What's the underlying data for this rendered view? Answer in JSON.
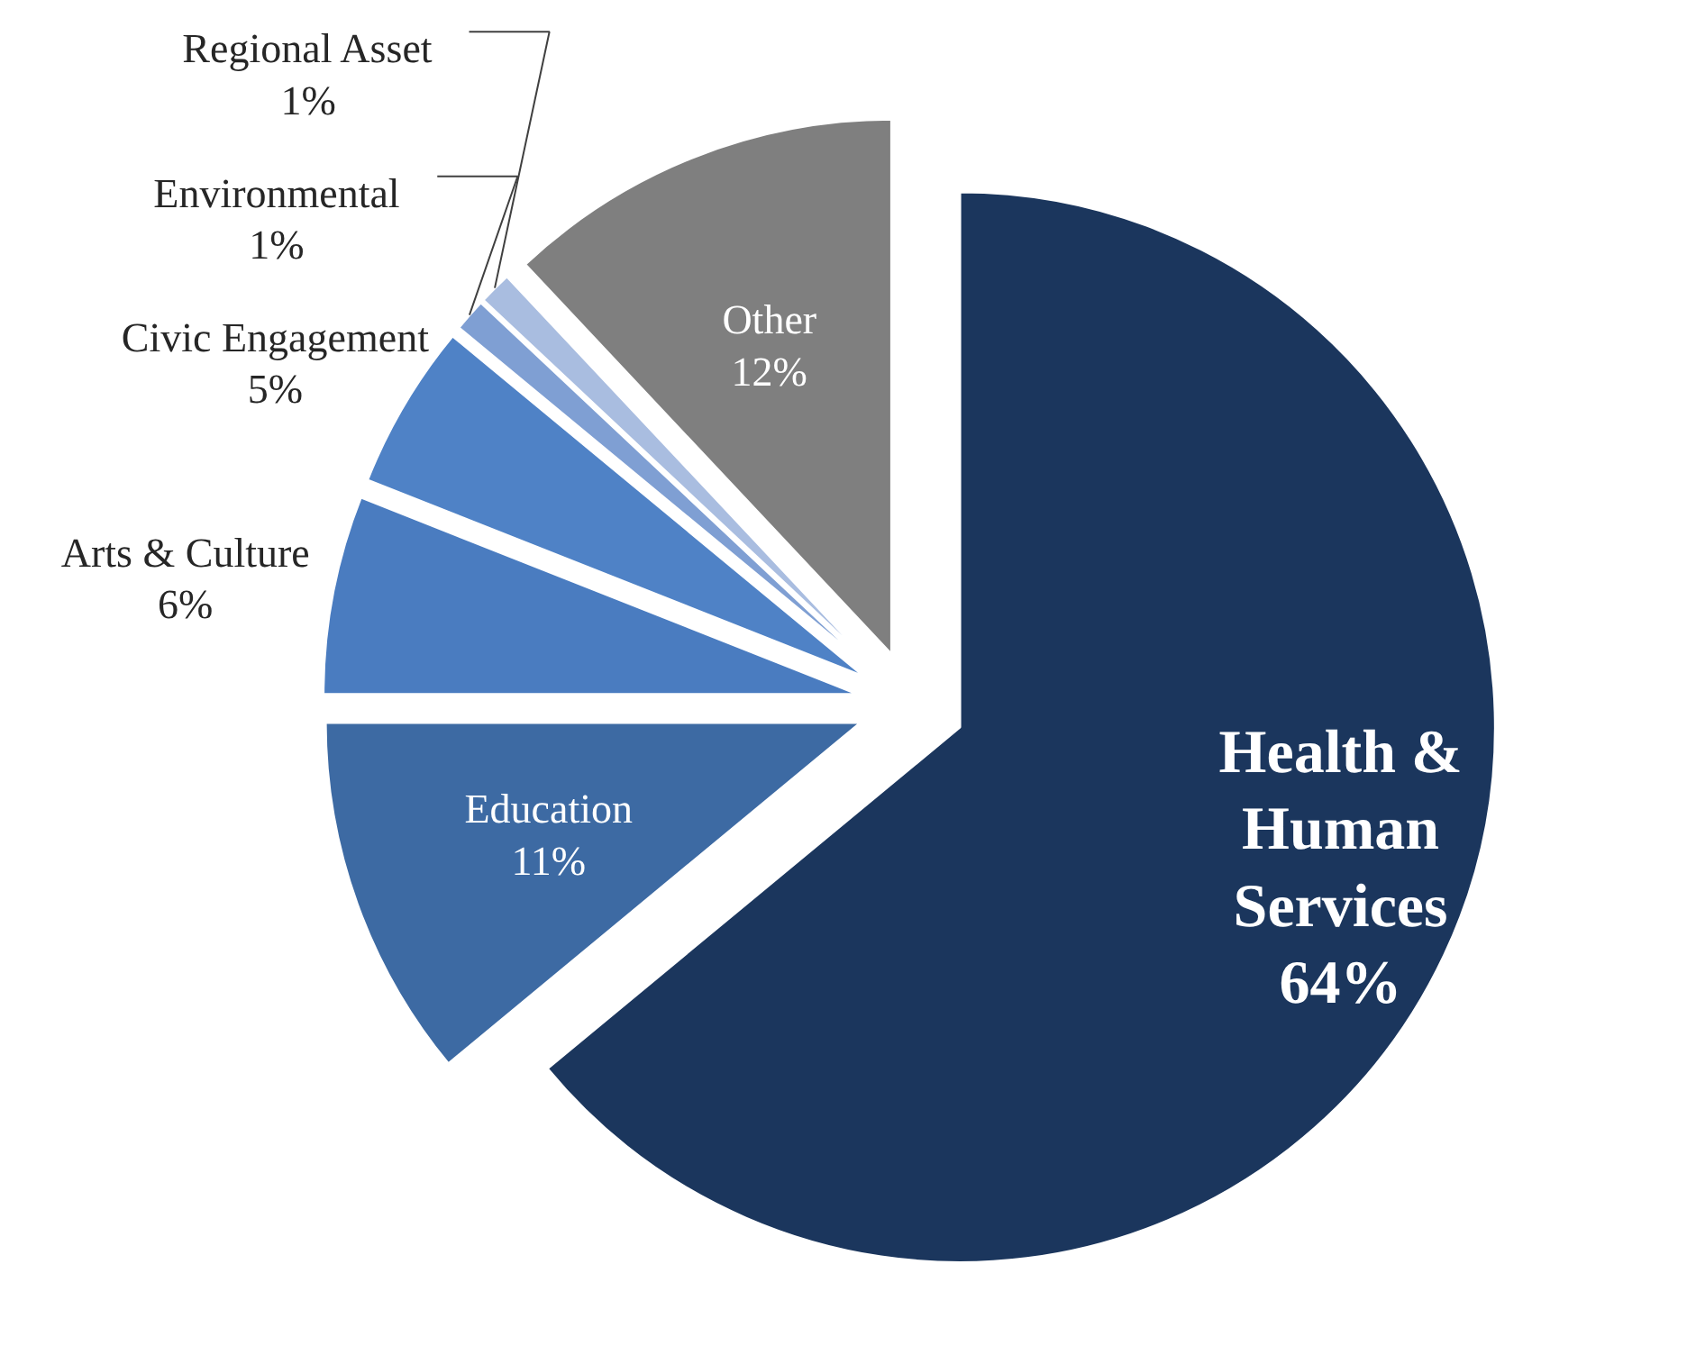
{
  "chart_data": {
    "type": "pie",
    "categories": [
      "Health & Human Services",
      "Education",
      "Arts & Culture",
      "Civic Engagement",
      "Environmental",
      "Regional Asset",
      "Other"
    ],
    "values": [
      64,
      11,
      6,
      5,
      1,
      1,
      12
    ],
    "colors": [
      "#1b365d",
      "#3d6aa3",
      "#4a7cc0",
      "#4f82c6",
      "#7f9fd3",
      "#a9bde0",
      "#7f7f7f"
    ],
    "value_labels": [
      "64%",
      "11%",
      "6%",
      "5%",
      "1%",
      "1%",
      "12%"
    ]
  }
}
